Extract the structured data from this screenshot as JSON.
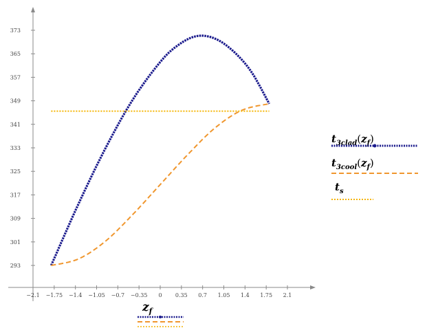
{
  "chart_data": {
    "type": "line",
    "xlabel_main": "z",
    "xlabel_sub": "f",
    "x_ticks": [
      "−2.1",
      "−1.75",
      "−1.4",
      "−1.05",
      "−0.7",
      "−0.35",
      "0",
      "0.35",
      "0.7",
      "1.05",
      "1.4",
      "1.75",
      "2.1"
    ],
    "x_tick_values": [
      -2.1,
      -1.75,
      -1.4,
      -1.05,
      -0.7,
      -0.35,
      0,
      0.35,
      0.7,
      1.05,
      1.4,
      1.75,
      2.1
    ],
    "y_ticks": [
      "293",
      "301",
      "309",
      "317",
      "325",
      "333",
      "341",
      "349",
      "357",
      "365",
      "373"
    ],
    "y_tick_values": [
      293,
      301,
      309,
      317,
      325,
      333,
      341,
      349,
      357,
      365,
      373
    ],
    "xlim": [
      -2.1,
      2.1
    ],
    "ylim": [
      293,
      373
    ],
    "series": [
      {
        "legend": {
          "main": "t",
          "sub": "3clad",
          "arg_main": "z",
          "arg_sub": "f"
        },
        "color": "#1a1a8c",
        "style": "dotted-markers",
        "x": [
          -1.8,
          -1.35,
          -0.9,
          -0.45,
          0,
          0.3,
          0.6,
          0.9,
          1.2,
          1.5,
          1.8
        ],
        "y": [
          293,
          313.9,
          333,
          349.5,
          362.2,
          368,
          371,
          370.2,
          366,
          359,
          348
        ]
      },
      {
        "legend": {
          "main": "t",
          "sub": "3cool",
          "arg_main": "z",
          "arg_sub": "f"
        },
        "color": "#f0962d",
        "style": "dashed",
        "x": [
          -1.8,
          -1.35,
          -0.9,
          -0.45,
          0,
          0.45,
          0.9,
          1.35,
          1.8
        ],
        "y": [
          293,
          295.2,
          301.3,
          310.4,
          320.5,
          330.6,
          339.7,
          345.8,
          348
        ]
      },
      {
        "legend": {
          "main": "t",
          "sub": "s"
        },
        "color": "#f5b400",
        "style": "dotted",
        "x": [
          -1.8,
          1.8
        ],
        "y": [
          345.5,
          345.5
        ]
      }
    ]
  }
}
